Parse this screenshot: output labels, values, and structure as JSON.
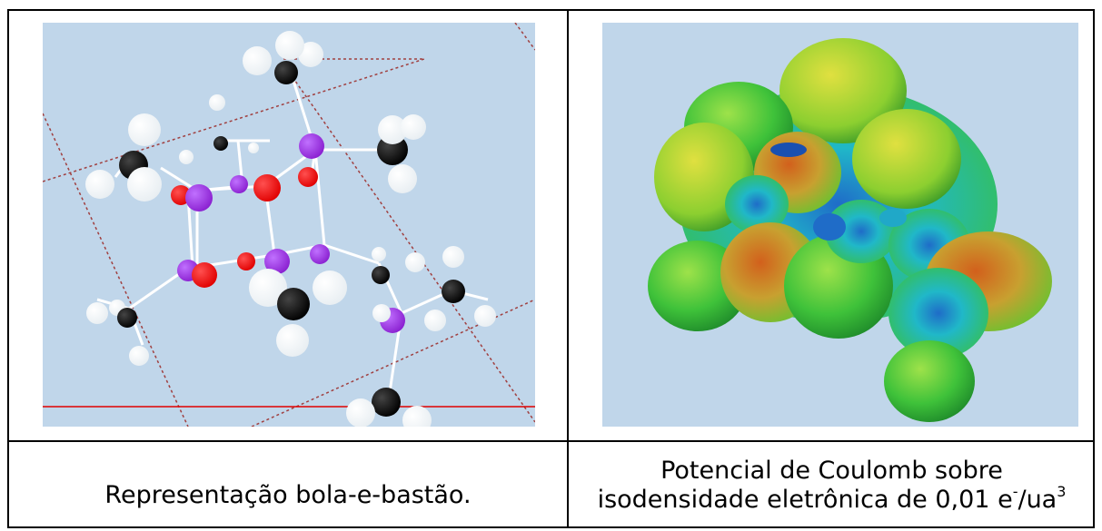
{
  "captions": {
    "left": "Representação bola-e-bastão.",
    "right_line1": "Potencial de Coulomb sobre",
    "right_line2_prefix": "isodensidade eletrônica de 0,01 e",
    "right_sup1": "-",
    "right_mid": "/ua",
    "right_sup2": "3"
  },
  "colors": {
    "background": "#c0d6ea",
    "oxygen": "#ff0000",
    "phosphorus_like": "#9b30e0",
    "carbon": "#000000",
    "hydrogen": "#ffffff",
    "axis_line": "#e00000"
  }
}
